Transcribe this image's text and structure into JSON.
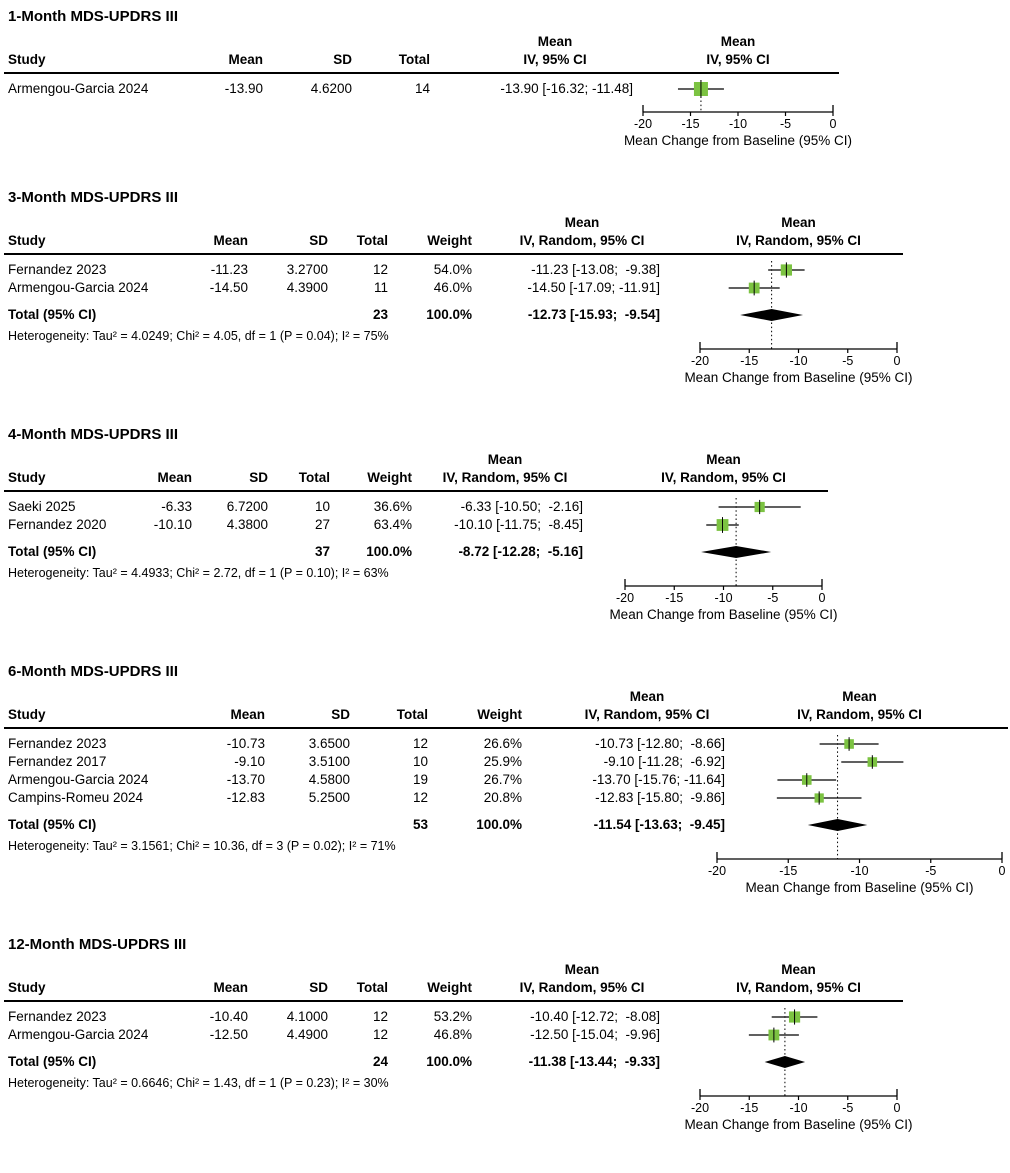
{
  "chart_data": {
    "type": "forest",
    "axis": {
      "label": "Mean Change from Baseline (95% CI)",
      "ticks": [
        -20,
        -15,
        -10,
        -5,
        0
      ],
      "range": [
        -20,
        0
      ]
    },
    "style": {
      "square_color": "#7CC342",
      "diamond_color": "#000000",
      "line_color": "#000000"
    },
    "column_headers": {
      "study": "Study",
      "mean": "Mean",
      "sd": "SD",
      "total": "Total",
      "weight": "Weight",
      "effect_top": "Mean"
    },
    "panels": [
      {
        "title": "1-Month MDS-UPDRS III",
        "effect_model_header": "IV, 95% CI",
        "show_weight": false,
        "studies": [
          {
            "name": "Armengou-Garcia 2024",
            "mean": "-13.90",
            "sd": "4.6200",
            "total": "14",
            "weight": null,
            "ci_text": "-13.90 [-16.32; -11.48]",
            "est": -13.9,
            "lo": -16.32,
            "hi": -11.48,
            "weight_pct": 100
          }
        ],
        "total": null,
        "heterogeneity": null
      },
      {
        "title": "3-Month MDS-UPDRS III",
        "effect_model_header": "IV, Random, 95% CI",
        "show_weight": true,
        "studies": [
          {
            "name": "Fernandez 2023",
            "mean": "-11.23",
            "sd": "3.2700",
            "total": "12",
            "weight": "54.0%",
            "ci_text": "-11.23 [-13.08;  -9.38]",
            "est": -11.23,
            "lo": -13.08,
            "hi": -9.38,
            "weight_pct": 54.0
          },
          {
            "name": "Armengou-Garcia 2024",
            "mean": "-14.50",
            "sd": "4.3900",
            "total": "11",
            "weight": "46.0%",
            "ci_text": "-14.50 [-17.09; -11.91]",
            "est": -14.5,
            "lo": -17.09,
            "hi": -11.91,
            "weight_pct": 46.0
          }
        ],
        "total": {
          "label": "Total (95% CI)",
          "total": "23",
          "weight": "100.0%",
          "ci_text": "-12.73 [-15.93;  -9.54]",
          "est": -12.73,
          "lo": -15.93,
          "hi": -9.54
        },
        "heterogeneity": "Heterogeneity: Tau² = 4.0249; Chi² = 4.05, df = 1 (P = 0.04); I² = 75%"
      },
      {
        "title": "4-Month MDS-UPDRS III",
        "effect_model_header": "IV, Random, 95% CI",
        "show_weight": true,
        "studies": [
          {
            "name": "Saeki 2025",
            "mean": "-6.33",
            "sd": "6.7200",
            "total": "10",
            "weight": "36.6%",
            "ci_text": "-6.33 [-10.50;  -2.16]",
            "est": -6.33,
            "lo": -10.5,
            "hi": -2.16,
            "weight_pct": 36.6
          },
          {
            "name": "Fernandez 2020",
            "mean": "-10.10",
            "sd": "4.3800",
            "total": "27",
            "weight": "63.4%",
            "ci_text": "-10.10 [-11.75;  -8.45]",
            "est": -10.1,
            "lo": -11.75,
            "hi": -8.45,
            "weight_pct": 63.4
          }
        ],
        "total": {
          "label": "Total (95% CI)",
          "total": "37",
          "weight": "100.0%",
          "ci_text": "-8.72 [-12.28;  -5.16]",
          "est": -8.72,
          "lo": -12.28,
          "hi": -5.16
        },
        "heterogeneity": "Heterogeneity: Tau² = 4.4933; Chi² = 2.72, df = 1 (P = 0.10); I² = 63%"
      },
      {
        "title": "6-Month MDS-UPDRS III",
        "effect_model_header": "IV, Random, 95% CI",
        "show_weight": true,
        "studies": [
          {
            "name": "Fernandez 2023",
            "mean": "-10.73",
            "sd": "3.6500",
            "total": "12",
            "weight": "26.6%",
            "ci_text": "-10.73 [-12.80;  -8.66]",
            "est": -10.73,
            "lo": -12.8,
            "hi": -8.66,
            "weight_pct": 26.6
          },
          {
            "name": "Fernandez 2017",
            "mean": "-9.10",
            "sd": "3.5100",
            "total": "10",
            "weight": "25.9%",
            "ci_text": "-9.10 [-11.28;  -6.92]",
            "est": -9.1,
            "lo": -11.28,
            "hi": -6.92,
            "weight_pct": 25.9
          },
          {
            "name": "Armengou-Garcia 2024",
            "mean": "-13.70",
            "sd": "4.5800",
            "total": "19",
            "weight": "26.7%",
            "ci_text": "-13.70 [-15.76; -11.64]",
            "est": -13.7,
            "lo": -15.76,
            "hi": -11.64,
            "weight_pct": 26.7
          },
          {
            "name": "Campins-Romeu 2024",
            "mean": "-12.83",
            "sd": "5.2500",
            "total": "12",
            "weight": "20.8%",
            "ci_text": "-12.83 [-15.80;  -9.86]",
            "est": -12.83,
            "lo": -15.8,
            "hi": -9.86,
            "weight_pct": 20.8
          }
        ],
        "total": {
          "label": "Total (95% CI)",
          "total": "53",
          "weight": "100.0%",
          "ci_text": "-11.54 [-13.63;  -9.45]",
          "est": -11.54,
          "lo": -13.63,
          "hi": -9.45
        },
        "heterogeneity": "Heterogeneity: Tau² = 3.1561; Chi² = 10.36, df = 3 (P = 0.02); I² = 71%"
      },
      {
        "title": "12-Month MDS-UPDRS III",
        "effect_model_header": "IV, Random, 95% CI",
        "show_weight": true,
        "studies": [
          {
            "name": "Fernandez 2023",
            "mean": "-10.40",
            "sd": "4.1000",
            "total": "12",
            "weight": "53.2%",
            "ci_text": "-10.40 [-12.72;  -8.08]",
            "est": -10.4,
            "lo": -12.72,
            "hi": -8.08,
            "weight_pct": 53.2
          },
          {
            "name": "Armengou-Garcia 2024",
            "mean": "-12.50",
            "sd": "4.4900",
            "total": "12",
            "weight": "46.8%",
            "ci_text": "-12.50 [-15.04;  -9.96]",
            "est": -12.5,
            "lo": -15.04,
            "hi": -9.96,
            "weight_pct": 46.8
          }
        ],
        "total": {
          "label": "Total (95% CI)",
          "total": "24",
          "weight": "100.0%",
          "ci_text": "-11.38 [-13.44;  -9.33]",
          "est": -11.38,
          "lo": -13.44,
          "hi": -9.33
        },
        "heterogeneity": "Heterogeneity: Tau² = 0.6646; Chi² = 1.43, df = 1 (P = 0.23); I² = 30%"
      }
    ]
  }
}
